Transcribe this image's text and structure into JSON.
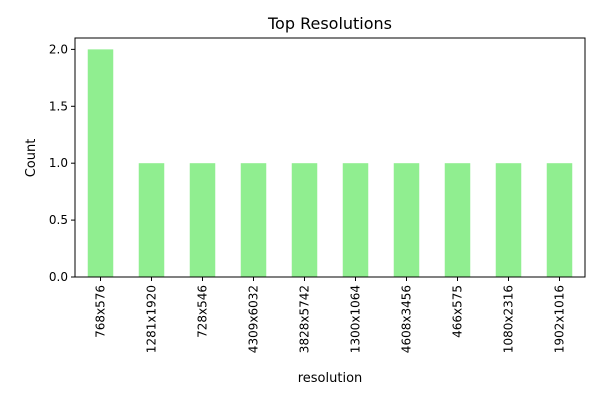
{
  "chart_data": {
    "type": "bar",
    "title": "Top Resolutions",
    "xlabel": "resolution",
    "ylabel": "Count",
    "categories": [
      "768x576",
      "1281x1920",
      "728x546",
      "4309x6032",
      "3828x5742",
      "1300x1064",
      "4608x3456",
      "466x575",
      "1080x2316",
      "1902x1016"
    ],
    "values": [
      2,
      1,
      1,
      1,
      1,
      1,
      1,
      1,
      1,
      1
    ],
    "ylim": [
      0,
      2.1
    ],
    "yticks": [
      0.0,
      0.5,
      1.0,
      1.5,
      2.0
    ],
    "ytick_labels": [
      "0.0",
      "0.5",
      "1.0",
      "1.5",
      "2.0"
    ],
    "grid": false,
    "legend": "none",
    "bar_color": "#90ee90"
  }
}
